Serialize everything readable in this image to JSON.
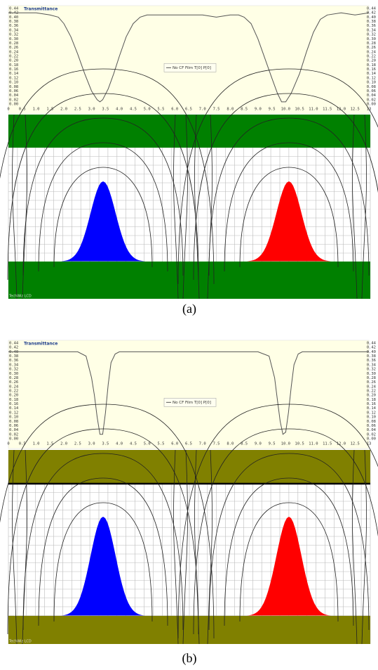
{
  "chart_data": [
    {
      "type": "line",
      "title": "Transmittance",
      "caption": "(a)",
      "watermark": "TechWiz LCD",
      "field_color": "#008000",
      "xlim": [
        0,
        13
      ],
      "ylim": [
        0,
        0.44
      ],
      "xticks": [
        0,
        0.5,
        {
          "value": 1,
          "label": "1.0"
        },
        1.5,
        {
          "value": 2,
          "label": "2.0"
        },
        2.5,
        {
          "value": 3,
          "label": "3.0"
        },
        3.5,
        {
          "value": 4,
          "label": "4.0"
        },
        4.5,
        {
          "value": 5,
          "label": "5.0"
        },
        5.5,
        {
          "value": 6,
          "label": "6.0"
        },
        6.5,
        {
          "value": 7,
          "label": "7.0"
        },
        7.5,
        {
          "value": 8,
          "label": "8.0"
        },
        8.5,
        {
          "value": 9,
          "label": "9.0"
        },
        9.5,
        {
          "value": 10,
          "label": "10.0"
        },
        10.5,
        {
          "value": 11,
          "label": "11.0"
        },
        11.5,
        {
          "value": 12,
          "label": "12.0"
        },
        12.5,
        13
      ],
      "yticks": [
        {
          "value": 0,
          "label": "0.00"
        },
        0.02,
        0.04,
        0.06,
        0.08,
        {
          "value": 0.1,
          "label": "0.10"
        },
        0.12,
        0.14,
        0.16,
        0.18,
        {
          "value": 0.2,
          "label": "0.20"
        },
        0.22,
        0.24,
        0.26,
        0.28,
        {
          "value": 0.3,
          "label": "0.30"
        },
        0.32,
        0.34,
        0.36,
        0.38,
        {
          "value": 0.4,
          "label": "0.40"
        },
        0.42,
        0.44
      ],
      "x": [
        0,
        0.5,
        1,
        1.5,
        1.8,
        2.0,
        2.25,
        2.5,
        2.75,
        3.0,
        3.2,
        3.3,
        3.4,
        3.6,
        3.8,
        4.0,
        4.25,
        4.5,
        4.75,
        5.0,
        5.5,
        6,
        6.5,
        7,
        7.5,
        8,
        8.3,
        8.5,
        8.75,
        9.0,
        9.25,
        9.5,
        9.7,
        9.85,
        10.0,
        10.2,
        10.5,
        10.75,
        11.0,
        11.25,
        11.5,
        12,
        12.5,
        13
      ],
      "series": [
        {
          "name": "No CF Film T[0] P[0]",
          "color": "#555555",
          "values": [
            0.42,
            0.42,
            0.42,
            0.41,
            0.4,
            0.37,
            0.31,
            0.23,
            0.14,
            0.06,
            0.02,
            0.01,
            0.02,
            0.07,
            0.14,
            0.22,
            0.31,
            0.37,
            0.4,
            0.41,
            0.41,
            0.41,
            0.41,
            0.41,
            0.4,
            0.41,
            0.41,
            0.4,
            0.37,
            0.3,
            0.21,
            0.12,
            0.05,
            0.01,
            0.01,
            0.05,
            0.14,
            0.24,
            0.33,
            0.39,
            0.41,
            0.42,
            0.41,
            0.42
          ]
        }
      ]
    },
    {
      "type": "line",
      "title": "Transmittance",
      "caption": "(b)",
      "watermark": "TechWiz LCD",
      "field_color": "#808000",
      "xlim": [
        0,
        13
      ],
      "ylim": [
        0,
        0.44
      ],
      "xticks": [
        0,
        0.5,
        {
          "value": 1,
          "label": "1.0"
        },
        1.5,
        {
          "value": 2,
          "label": "2.0"
        },
        2.5,
        {
          "value": 3,
          "label": "3.0"
        },
        3.5,
        {
          "value": 4,
          "label": "4.0"
        },
        4.5,
        {
          "value": 5,
          "label": "5.0"
        },
        5.5,
        {
          "value": 6,
          "label": "6.0"
        },
        6.5,
        {
          "value": 7,
          "label": "7.0"
        },
        7.5,
        {
          "value": 8,
          "label": "8.0"
        },
        8.5,
        {
          "value": 9,
          "label": "9.0"
        },
        9.5,
        {
          "value": 10,
          "label": "10.0"
        },
        10.5,
        {
          "value": 11,
          "label": "11.0"
        },
        11.5,
        {
          "value": 12,
          "label": "12.0"
        },
        12.5,
        13
      ],
      "yticks": [
        {
          "value": 0,
          "label": "0.00"
        },
        0.02,
        0.04,
        0.06,
        0.08,
        {
          "value": 0.1,
          "label": "0.10"
        },
        0.12,
        0.14,
        0.16,
        0.18,
        {
          "value": 0.2,
          "label": "0.20"
        },
        0.22,
        0.24,
        0.26,
        0.28,
        {
          "value": 0.3,
          "label": "0.30"
        },
        0.32,
        0.34,
        0.36,
        0.38,
        {
          "value": 0.4,
          "label": "0.40"
        },
        0.42,
        0.44
      ],
      "x": [
        0,
        0.5,
        1,
        1.5,
        2,
        2.5,
        2.8,
        3.0,
        3.1,
        3.2,
        3.3,
        3.4,
        3.5,
        3.6,
        3.7,
        3.85,
        4.0,
        5,
        6,
        7,
        8,
        9,
        9.4,
        9.6,
        9.7,
        9.8,
        9.9,
        10.0,
        10.1,
        10.2,
        10.3,
        10.45,
        10.6,
        11,
        12,
        13
      ],
      "series": [
        {
          "name": "No CF Film T[0] P[0]",
          "color": "#555555",
          "values": [
            0.4,
            0.4,
            0.4,
            0.4,
            0.4,
            0.4,
            0.38,
            0.28,
            0.2,
            0.1,
            0.02,
            0.02,
            0.12,
            0.25,
            0.35,
            0.39,
            0.4,
            0.4,
            0.4,
            0.4,
            0.4,
            0.4,
            0.38,
            0.28,
            0.18,
            0.08,
            0.02,
            0.03,
            0.12,
            0.24,
            0.34,
            0.39,
            0.4,
            0.4,
            0.4,
            0.4
          ]
        }
      ]
    }
  ]
}
